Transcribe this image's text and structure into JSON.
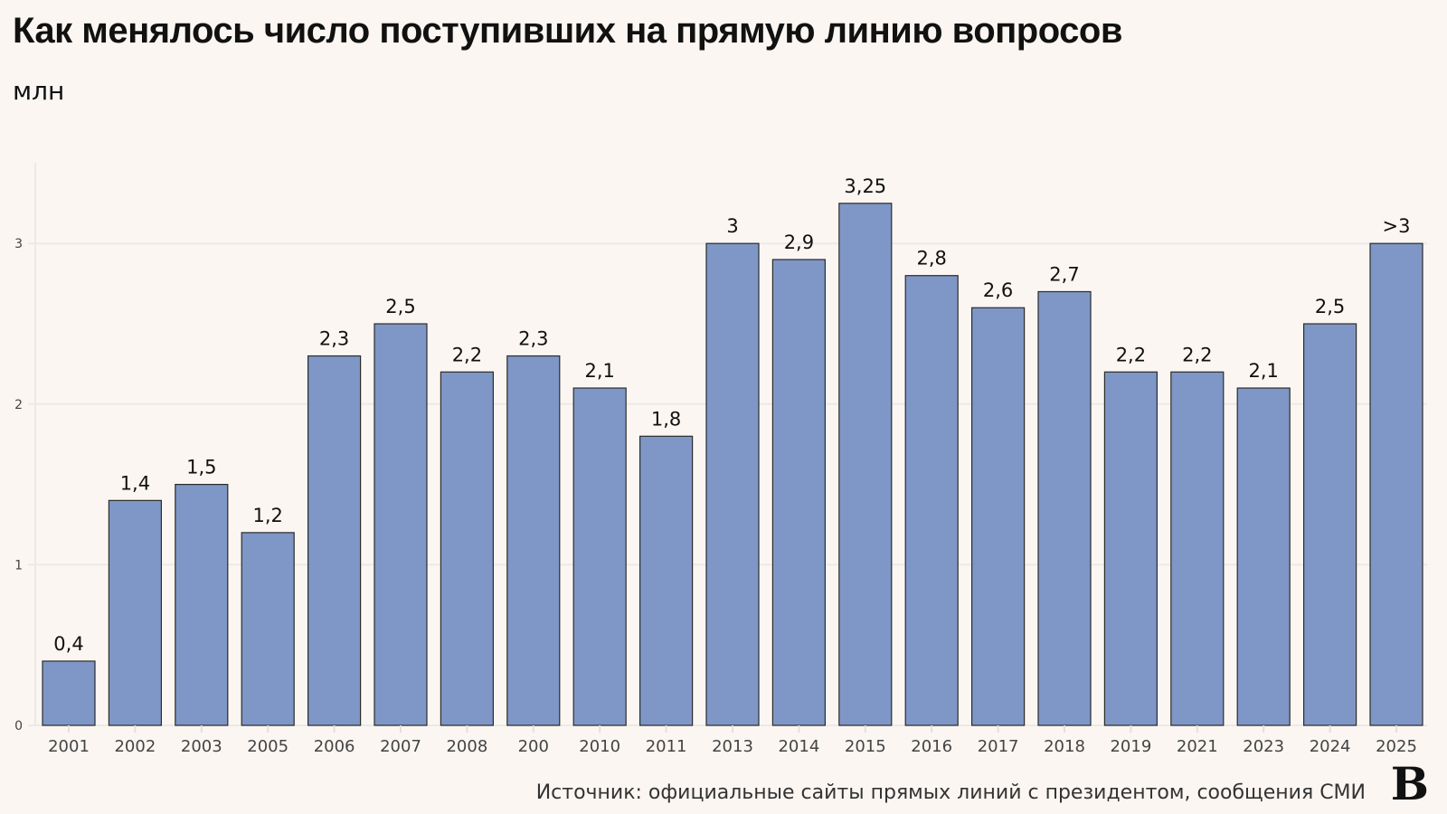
{
  "chart_data": {
    "type": "bar",
    "title": "Как менялось число поступивших на прямую линию вопросов",
    "subtitle": "млн",
    "categories": [
      "2001",
      "2002",
      "2003",
      "2005",
      "2006",
      "2007",
      "2008",
      "200",
      "2010",
      "2011",
      "2013",
      "2014",
      "2015",
      "2016",
      "2017",
      "2018",
      "2019",
      "2021",
      "2023",
      "2024",
      "2025"
    ],
    "values": [
      0.4,
      1.4,
      1.5,
      1.2,
      2.3,
      2.5,
      2.2,
      2.3,
      2.1,
      1.8,
      3,
      2.9,
      3.25,
      2.8,
      2.6,
      2.7,
      2.2,
      2.2,
      2.1,
      2.5,
      3
    ],
    "data_labels": [
      "0,4",
      "1,4",
      "1,5",
      "1,2",
      "2,3",
      "2,5",
      "2,2",
      "2,3",
      "2,1",
      "1,8",
      "3",
      "2,9",
      "3,25",
      "2,8",
      "2,6",
      "2,7",
      "2,2",
      "2,2",
      "2,1",
      "2,5",
      ">3"
    ],
    "yticks": [
      0,
      1,
      2,
      3
    ],
    "ylim": [
      0,
      3.5
    ],
    "grid": true,
    "bar_color": "#7f97c6",
    "bar_edge_color": "#2b2b2b",
    "background": "#fbf6f2"
  },
  "source": "Источник: официальные сайты прямых линий с президентом, сообщения СМИ",
  "logo": "В"
}
